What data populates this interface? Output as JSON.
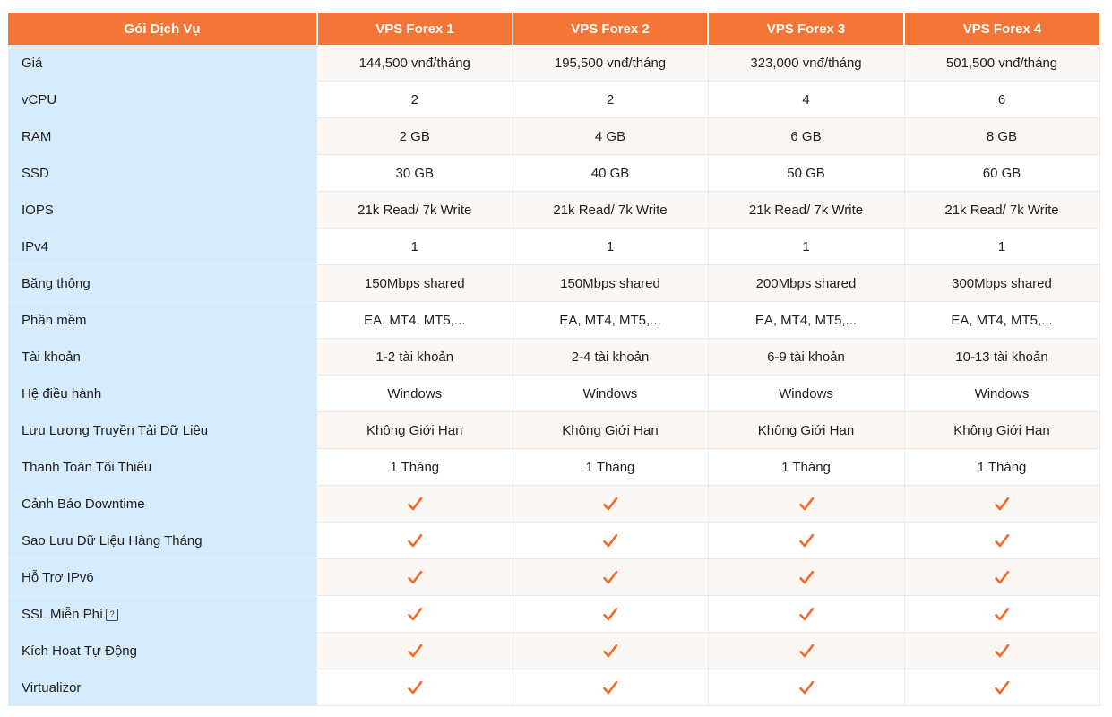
{
  "header": {
    "service_label": "Gói Dịch Vụ",
    "plans": [
      "VPS Forex 1",
      "VPS Forex 2",
      "VPS Forex 3",
      "VPS Forex 4"
    ]
  },
  "rows": [
    {
      "label": "Giá",
      "values": [
        "144,500 vnđ/tháng",
        "195,500 vnđ/tháng",
        "323,000 vnđ/tháng",
        "501,500 vnđ/tháng"
      ]
    },
    {
      "label": "vCPU",
      "values": [
        "2",
        "2",
        "4",
        "6"
      ]
    },
    {
      "label": "RAM",
      "values": [
        "2 GB",
        "4 GB",
        "6 GB",
        "8 GB"
      ]
    },
    {
      "label": "SSD",
      "values": [
        "30 GB",
        "40 GB",
        "50 GB",
        "60 GB"
      ]
    },
    {
      "label": "IOPS",
      "values": [
        "21k Read/ 7k Write",
        "21k Read/ 7k Write",
        "21k Read/ 7k Write",
        "21k Read/ 7k Write"
      ]
    },
    {
      "label": "IPv4",
      "values": [
        "1",
        "1",
        "1",
        "1"
      ]
    },
    {
      "label": "Băng thông",
      "values": [
        "150Mbps shared",
        "150Mbps shared",
        "200Mbps shared",
        "300Mbps shared"
      ]
    },
    {
      "label": "Phần mềm",
      "values": [
        "EA, MT4, MT5,...",
        "EA, MT4, MT5,...",
        "EA, MT4, MT5,...",
        "EA, MT4, MT5,..."
      ]
    },
    {
      "label": "Tài khoản",
      "values": [
        "1-2 tài khoản",
        "2-4 tài khoản",
        "6-9 tài khoản",
        "10-13 tài khoản"
      ]
    },
    {
      "label": "Hệ điều hành",
      "values": [
        "Windows",
        "Windows",
        "Windows",
        "Windows"
      ]
    },
    {
      "label": "Lưu Lượng Truyền Tải Dữ Liệu",
      "values": [
        "Không Giới Hạn",
        "Không Giới Hạn",
        "Không Giới Hạn",
        "Không Giới Hạn"
      ]
    },
    {
      "label": "Thanh Toán Tối Thiểu",
      "values": [
        "1 Tháng",
        "1 Tháng",
        "1 Tháng",
        "1 Tháng"
      ]
    }
  ],
  "feature_rows": [
    {
      "label": "Cảnh Báo Downtime",
      "icon": "checkmark-icon"
    },
    {
      "label": "Sao Lưu Dữ Liệu Hàng Tháng",
      "icon": "checkmark-icon"
    },
    {
      "label": "Hỗ Trợ IPv6",
      "icon": "checkmark-icon"
    },
    {
      "label": "SSL Miễn Phí",
      "icon": "checkmark-icon",
      "help_icon": "question-mark-icon",
      "help_glyph": "?"
    },
    {
      "label": "Kích Hoạt Tự Động",
      "icon": "checkmark-icon"
    },
    {
      "label": "Virtualizor",
      "icon": "checkmark-icon"
    }
  ],
  "colors": {
    "header_bg": "#f47636",
    "label_bg": "#d6ecfc",
    "check": "#f26a2a",
    "stripe": "#fcf7f3"
  }
}
